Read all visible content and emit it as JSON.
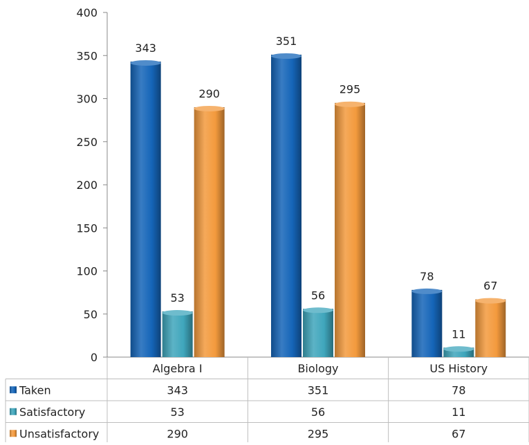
{
  "chart_data": {
    "type": "bar",
    "categories": [
      "Algebra I",
      "Biology",
      "US History"
    ],
    "series": [
      {
        "name": "Taken",
        "values": [
          343,
          351,
          78
        ],
        "color": "#1565b8"
      },
      {
        "name": "Satisfactory",
        "values": [
          53,
          56,
          11
        ],
        "color": "#3fa6bc"
      },
      {
        "name": "Unsatisfactory",
        "values": [
          290,
          295,
          67
        ],
        "color": "#f39a3d"
      }
    ],
    "ylim": [
      0,
      400
    ],
    "yticks": [
      0,
      50,
      100,
      150,
      200,
      250,
      300,
      350,
      400
    ],
    "grid": false,
    "data_labels": true,
    "data_table": true,
    "legend": "data-table"
  }
}
